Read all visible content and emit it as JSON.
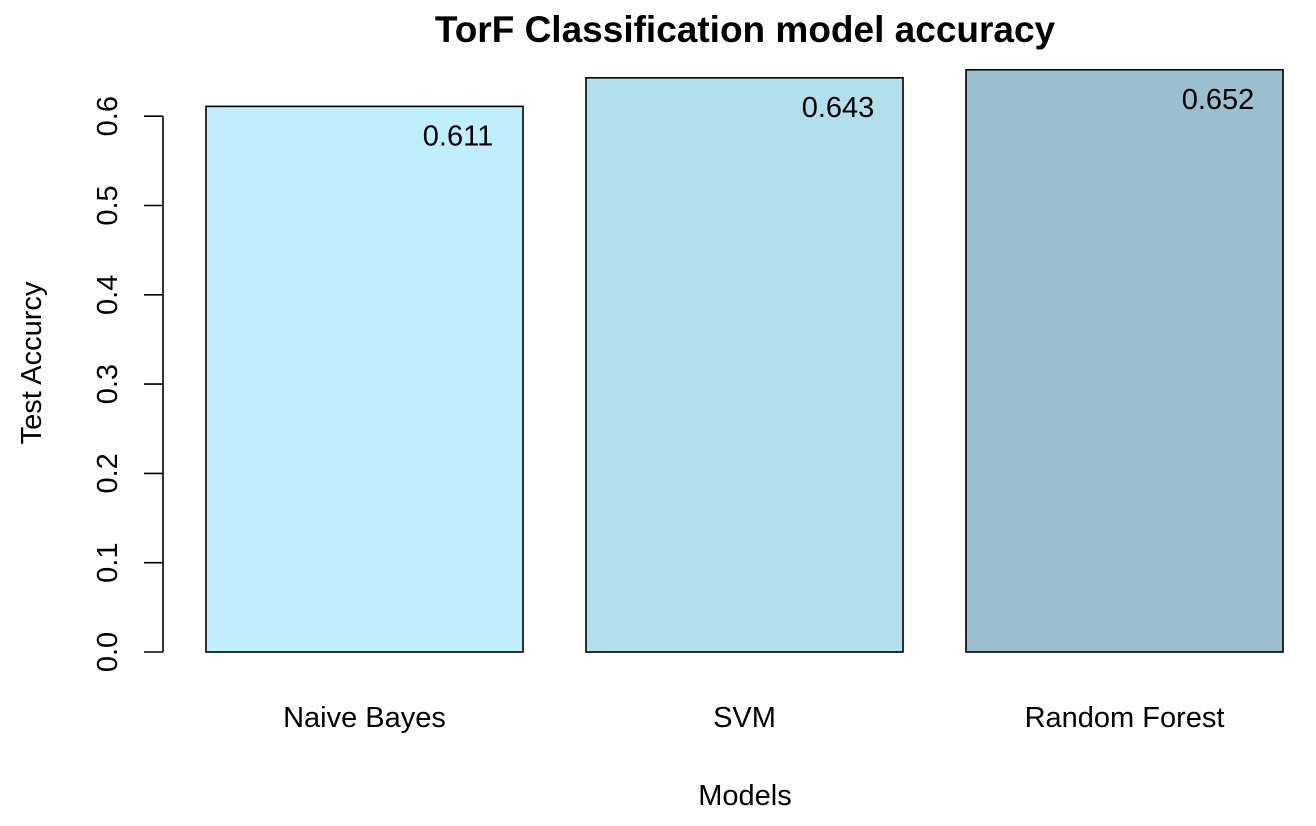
{
  "chart_data": {
    "type": "bar",
    "title": "TorF Classification model accuracy",
    "xlabel": "Models",
    "ylabel": "Test Accurcy",
    "categories": [
      "Naive Bayes",
      "SVM",
      "Random Forest"
    ],
    "values": [
      0.611,
      0.643,
      0.652
    ],
    "value_labels": [
      "0.611",
      "0.643",
      "0.652"
    ],
    "colors": [
      "#BFEEFC",
      "#B1DFEC",
      "#9BBFCF"
    ],
    "ylim": [
      0,
      0.6
    ],
    "yticks": [
      0.0,
      0.1,
      0.2,
      0.3,
      0.4,
      0.5,
      0.6
    ],
    "ytick_labels": [
      "0.0",
      "0.1",
      "0.2",
      "0.3",
      "0.4",
      "0.5",
      "0.6"
    ],
    "grid": false,
    "legend": "none"
  }
}
